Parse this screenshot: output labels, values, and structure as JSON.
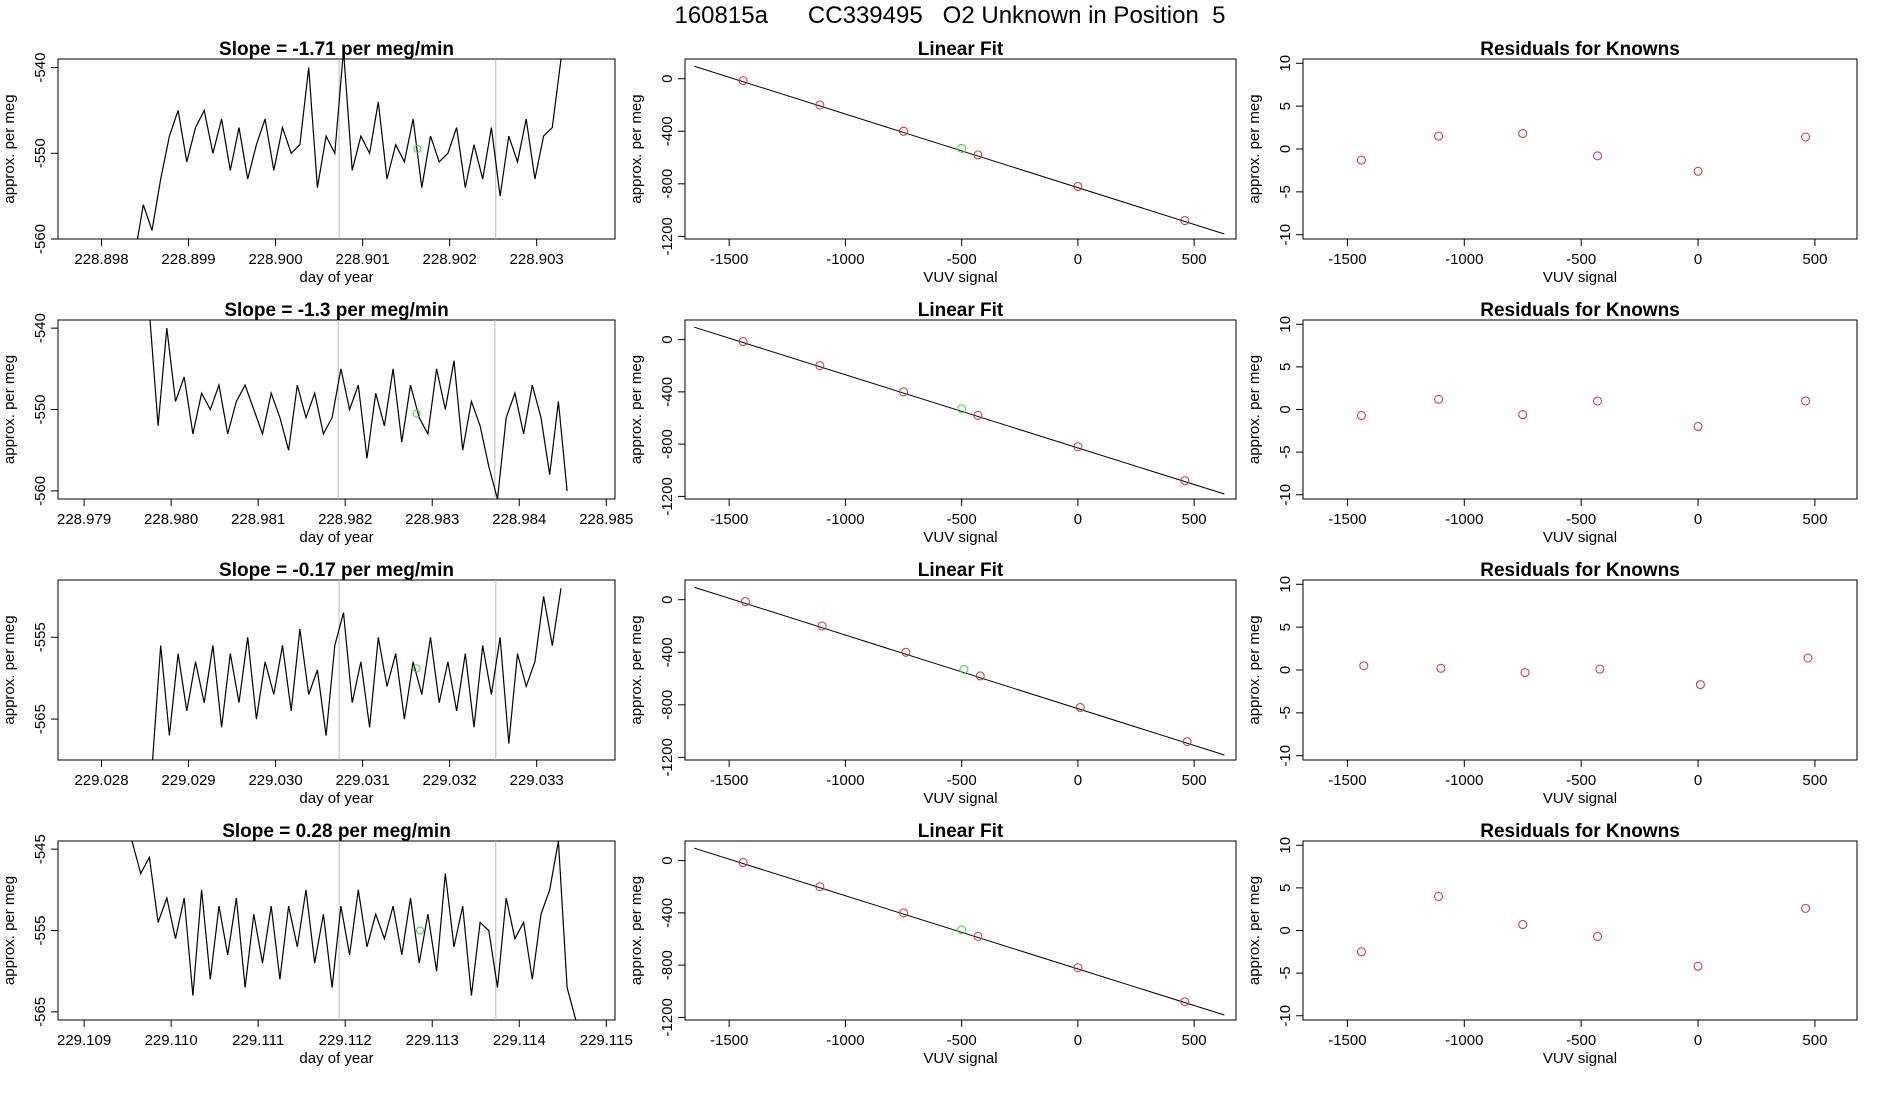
{
  "page": {
    "title": "160815a      CC339495   O2 Unknown in Position  5"
  },
  "colors": {
    "trace": "#000000",
    "known_point": "#cd3333",
    "unknown_point": "#33dd33",
    "window_line": "#bbbbbb",
    "axis": "#000000"
  },
  "chart_data": [
    {
      "type": "line",
      "title": "Slope =  -1.71  per meg/min",
      "xlabel": "day of year",
      "ylabel": "approx. per meg",
      "xlim": [
        228.8975,
        228.9039
      ],
      "ylim": [
        -560,
        -539
      ],
      "xticks": [
        228.898,
        228.899,
        228.9,
        228.901,
        228.902,
        228.903
      ],
      "xtick_labels": [
        "228.898",
        "228.899",
        "228.900",
        "228.901",
        "228.902",
        "228.903"
      ],
      "yticks": [
        -560,
        -550,
        -540
      ],
      "ytick_labels": [
        "-560",
        "-550",
        "-540"
      ],
      "window_lines": [
        228.90073,
        228.90253
      ],
      "trace": {
        "x": [
          228.89838,
          228.89848,
          228.89858,
          228.89868,
          228.89878,
          228.89888,
          228.89898,
          228.89908,
          228.89918,
          228.89928,
          228.89938,
          228.89948,
          228.89958,
          228.89968,
          228.89978,
          228.89988,
          228.89998,
          228.90008,
          228.90018,
          228.90028,
          228.90038,
          228.90048,
          228.90058,
          228.90068,
          228.90078,
          228.90088,
          228.90098,
          228.90108,
          228.90118,
          228.90128,
          228.90138,
          228.90148,
          228.90158,
          228.90168,
          228.90178,
          228.90188,
          228.90198,
          228.90208,
          228.90218,
          228.90228,
          228.90238,
          228.90248,
          228.90258,
          228.90268,
          228.90278,
          228.90288,
          228.90298,
          228.90308,
          228.90318,
          228.90328
        ],
        "y": [
          -562,
          -556,
          -559,
          -553,
          -548,
          -545,
          -551,
          -547,
          -545,
          -550,
          -546,
          -552,
          -547,
          -553,
          -549,
          -546,
          -552,
          -547,
          -550,
          -549,
          -540,
          -554,
          -548,
          -550,
          -538,
          -552,
          -548,
          -550,
          -544,
          -553,
          -549,
          -551,
          -546,
          -554,
          -548,
          -551,
          -550,
          -547,
          -554,
          -549,
          -553,
          -547,
          -555,
          -548,
          -551,
          -546,
          -553,
          -548,
          -547,
          -539
        ]
      },
      "unknown_point": {
        "x": 228.90163,
        "y": -549.5
      }
    },
    {
      "type": "scatter",
      "title": "Linear Fit",
      "xlabel": "VUV signal",
      "ylabel": "approx. per meg",
      "xlim": [
        -1690,
        680
      ],
      "ylim": [
        -1220,
        150
      ],
      "xticks": [
        -1500,
        -1000,
        -500,
        0,
        500
      ],
      "xtick_labels": [
        "-1500",
        "-1000",
        "-500",
        "0",
        "500"
      ],
      "yticks": [
        -1200,
        -800,
        -400,
        0
      ],
      "ytick_labels": [
        "-1200",
        "-800",
        "-400",
        "0"
      ],
      "fit_line": {
        "x": [
          -1650,
          630
        ],
        "y": [
          95,
          -1182
        ]
      },
      "knowns": {
        "x": [
          -1440,
          -1110,
          -750,
          -430,
          0,
          460
        ],
        "y": [
          -15,
          -200,
          -400,
          -580,
          -820,
          -1080
        ]
      },
      "unknown": {
        "x": -500,
        "y": -530
      }
    },
    {
      "type": "scatter",
      "title": "Residuals for Knowns",
      "xlabel": "VUV signal",
      "ylabel": "approx. per meg",
      "xlim": [
        -1690,
        680
      ],
      "ylim": [
        -10.5,
        10.5
      ],
      "xticks": [
        -1500,
        -1000,
        -500,
        0,
        500
      ],
      "xtick_labels": [
        "-1500",
        "-1000",
        "-500",
        "0",
        "500"
      ],
      "yticks": [
        -10,
        -5,
        0,
        5,
        10
      ],
      "ytick_labels": [
        "-10",
        "-5",
        "0",
        "5",
        "10"
      ],
      "points": {
        "x": [
          -1440,
          -1110,
          -750,
          -430,
          0,
          460
        ],
        "y": [
          -1.3,
          1.5,
          1.8,
          -0.8,
          -2.6,
          1.4
        ]
      }
    },
    {
      "type": "line",
      "title": "Slope =  -1.3  per meg/min",
      "xlabel": "day of year",
      "ylabel": "approx. per meg",
      "xlim": [
        228.9787,
        228.9851
      ],
      "ylim": [
        -561,
        -539
      ],
      "xticks": [
        228.979,
        228.98,
        228.981,
        228.982,
        228.983,
        228.984,
        228.985
      ],
      "xtick_labels": [
        "228.979",
        "228.980",
        "228.981",
        "228.982",
        "228.983",
        "228.984",
        "228.985"
      ],
      "yticks": [
        -560,
        -550,
        -540
      ],
      "ytick_labels": [
        "-560",
        "-550",
        "-540"
      ],
      "window_lines": [
        228.98192,
        228.98372
      ],
      "trace": {
        "x": [
          228.97975,
          228.97985,
          228.97995,
          228.98005,
          228.98015,
          228.98025,
          228.98035,
          228.98045,
          228.98055,
          228.98065,
          228.98075,
          228.98085,
          228.98095,
          228.98105,
          228.98115,
          228.98125,
          228.98135,
          228.98145,
          228.98155,
          228.98165,
          228.98175,
          228.98185,
          228.98195,
          228.98205,
          228.98215,
          228.98225,
          228.98235,
          228.98245,
          228.98255,
          228.98265,
          228.98275,
          228.98285,
          228.98295,
          228.98305,
          228.98315,
          228.98325,
          228.98335,
          228.98345,
          228.98355,
          228.98365,
          228.98375,
          228.98385,
          228.98395,
          228.98405,
          228.98415,
          228.98425,
          228.98435,
          228.98445,
          228.98455
        ],
        "y": [
          -538,
          -552,
          -540,
          -549,
          -546,
          -553,
          -548,
          -550,
          -547,
          -553,
          -549,
          -547,
          -550,
          -553,
          -548,
          -551,
          -555,
          -547,
          -551,
          -548,
          -553,
          -551,
          -545,
          -550,
          -547,
          -556,
          -548,
          -552,
          -545,
          -554,
          -547,
          -551,
          -553,
          -545,
          -550,
          -544,
          -555,
          -549,
          -552,
          -557,
          -561,
          -551,
          -548,
          -553,
          -547,
          -551,
          -558,
          -549,
          -560
        ]
      },
      "unknown_point": {
        "x": 228.98282,
        "y": -550.5
      }
    },
    {
      "type": "scatter",
      "title": "Linear Fit",
      "xlabel": "VUV signal",
      "ylabel": "approx. per meg",
      "xlim": [
        -1690,
        680
      ],
      "ylim": [
        -1220,
        150
      ],
      "xticks": [
        -1500,
        -1000,
        -500,
        0,
        500
      ],
      "xtick_labels": [
        "-1500",
        "-1000",
        "-500",
        "0",
        "500"
      ],
      "yticks": [
        -1200,
        -800,
        -400,
        0
      ],
      "ytick_labels": [
        "-1200",
        "-800",
        "-400",
        "0"
      ],
      "fit_line": {
        "x": [
          -1650,
          630
        ],
        "y": [
          95,
          -1182
        ]
      },
      "knowns": {
        "x": [
          -1440,
          -1110,
          -750,
          -430,
          0,
          460
        ],
        "y": [
          -15,
          -200,
          -400,
          -580,
          -820,
          -1080
        ]
      },
      "unknown": {
        "x": -500,
        "y": -530
      }
    },
    {
      "type": "scatter",
      "title": "Residuals for Knowns",
      "xlabel": "VUV signal",
      "ylabel": "approx. per meg",
      "xlim": [
        -1690,
        680
      ],
      "ylim": [
        -10.5,
        10.5
      ],
      "xticks": [
        -1500,
        -1000,
        -500,
        0,
        500
      ],
      "xtick_labels": [
        "-1500",
        "-1000",
        "-500",
        "0",
        "500"
      ],
      "yticks": [
        -10,
        -5,
        0,
        5,
        10
      ],
      "ytick_labels": [
        "-10",
        "-5",
        "0",
        "5",
        "10"
      ],
      "points": {
        "x": [
          -1440,
          -1110,
          -750,
          -430,
          0,
          460
        ],
        "y": [
          -0.7,
          1.2,
          -0.6,
          1.0,
          -2.0,
          1.0
        ]
      }
    },
    {
      "type": "line",
      "title": "Slope =  -0.17  per meg/min",
      "xlabel": "day of year",
      "ylabel": "approx. per meg",
      "xlim": [
        229.0275,
        229.0339
      ],
      "ylim": [
        -570,
        -548
      ],
      "xticks": [
        229.028,
        229.029,
        229.03,
        229.031,
        229.032,
        229.033
      ],
      "xtick_labels": [
        "229.028",
        "229.029",
        "229.030",
        "229.031",
        "229.032",
        "229.033"
      ],
      "yticks": [
        -565,
        -555
      ],
      "ytick_labels": [
        "-565",
        "-555"
      ],
      "window_lines": [
        229.03073,
        229.03253
      ],
      "trace": {
        "x": [
          229.02858,
          229.02868,
          229.02878,
          229.02888,
          229.02898,
          229.02908,
          229.02918,
          229.02928,
          229.02938,
          229.02948,
          229.02958,
          229.02968,
          229.02978,
          229.02988,
          229.02998,
          229.03008,
          229.03018,
          229.03028,
          229.03038,
          229.03048,
          229.03058,
          229.03068,
          229.03078,
          229.03088,
          229.03098,
          229.03108,
          229.03118,
          229.03128,
          229.03138,
          229.03148,
          229.03158,
          229.03168,
          229.03178,
          229.03188,
          229.03198,
          229.03208,
          229.03218,
          229.03228,
          229.03238,
          229.03248,
          229.03258,
          229.03268,
          229.03278,
          229.03288,
          229.03298,
          229.03308,
          229.03318,
          229.03328
        ],
        "y": [
          -571,
          -556,
          -567,
          -557,
          -564,
          -558,
          -563,
          -556,
          -566,
          -557,
          -563,
          -555,
          -565,
          -558,
          -562,
          -556,
          -564,
          -554,
          -562,
          -559,
          -567,
          -556,
          -552,
          -563,
          -558,
          -566,
          -555,
          -561,
          -557,
          -565,
          -558,
          -562,
          -555,
          -563,
          -558,
          -564,
          -557,
          -566,
          -556,
          -562,
          -555,
          -568,
          -557,
          -561,
          -558,
          -550,
          -556,
          -549
        ]
      },
      "unknown_point": {
        "x": 229.03162,
        "y": -558.8
      }
    },
    {
      "type": "scatter",
      "title": "Linear Fit",
      "xlabel": "VUV signal",
      "ylabel": "approx. per meg",
      "xlim": [
        -1690,
        680
      ],
      "ylim": [
        -1220,
        150
      ],
      "xticks": [
        -1500,
        -1000,
        -500,
        0,
        500
      ],
      "xtick_labels": [
        "-1500",
        "-1000",
        "-500",
        "0",
        "500"
      ],
      "yticks": [
        -1200,
        -800,
        -400,
        0
      ],
      "ytick_labels": [
        "-1200",
        "-800",
        "-400",
        "0"
      ],
      "fit_line": {
        "x": [
          -1650,
          630
        ],
        "y": [
          95,
          -1182
        ]
      },
      "knowns": {
        "x": [
          -1430,
          -1100,
          -740,
          -420,
          10,
          470
        ],
        "y": [
          -15,
          -200,
          -400,
          -580,
          -820,
          -1080
        ]
      },
      "unknown": {
        "x": -490,
        "y": -530
      }
    },
    {
      "type": "scatter",
      "title": "Residuals for Knowns",
      "xlabel": "VUV signal",
      "ylabel": "approx. per meg",
      "xlim": [
        -1690,
        680
      ],
      "ylim": [
        -10.5,
        10.5
      ],
      "xticks": [
        -1500,
        -1000,
        -500,
        0,
        500
      ],
      "xtick_labels": [
        "-1500",
        "-1000",
        "-500",
        "0",
        "500"
      ],
      "yticks": [
        -10,
        -5,
        0,
        5,
        10
      ],
      "ytick_labels": [
        "-10",
        "-5",
        "0",
        "5",
        "10"
      ],
      "points": {
        "x": [
          -1430,
          -1100,
          -740,
          -420,
          10,
          470
        ],
        "y": [
          0.5,
          0.2,
          -0.3,
          0.1,
          -1.7,
          1.4
        ]
      }
    },
    {
      "type": "line",
      "title": "Slope =  0.28  per meg/min",
      "xlabel": "day of year",
      "ylabel": "approx. per meg",
      "xlim": [
        229.1087,
        229.1151
      ],
      "ylim": [
        -566,
        -544
      ],
      "xticks": [
        229.109,
        229.11,
        229.111,
        229.112,
        229.113,
        229.114,
        229.115
      ],
      "xtick_labels": [
        "229.109",
        "229.110",
        "229.111",
        "229.112",
        "229.113",
        "229.114",
        "229.115"
      ],
      "yticks": [
        -565,
        -555,
        -545
      ],
      "ytick_labels": [
        "-565",
        "-555",
        "-545"
      ],
      "window_lines": [
        229.11193,
        229.11373
      ],
      "trace": {
        "x": [
          229.10955,
          229.10965,
          229.10975,
          229.10985,
          229.10995,
          229.11005,
          229.11015,
          229.11025,
          229.11035,
          229.11045,
          229.11055,
          229.11065,
          229.11075,
          229.11085,
          229.11095,
          229.11105,
          229.11115,
          229.11125,
          229.11135,
          229.11145,
          229.11155,
          229.11165,
          229.11175,
          229.11185,
          229.11195,
          229.11205,
          229.11215,
          229.11225,
          229.11235,
          229.11245,
          229.11255,
          229.11265,
          229.11275,
          229.11285,
          229.11295,
          229.11305,
          229.11315,
          229.11325,
          229.11335,
          229.11345,
          229.11355,
          229.11365,
          229.11375,
          229.11385,
          229.11395,
          229.11405,
          229.11415,
          229.11425,
          229.11435,
          229.11445,
          229.11455,
          229.11465
        ],
        "y": [
          -544,
          -548,
          -546,
          -554,
          -551,
          -556,
          -551,
          -563,
          -550,
          -561,
          -552,
          -558,
          -551,
          -562,
          -553,
          -559,
          -552,
          -561,
          -552,
          -557,
          -550,
          -559,
          -553,
          -562,
          -552,
          -558,
          -550,
          -557,
          -553,
          -556,
          -552,
          -558,
          -551,
          -559,
          -553,
          -560,
          -548,
          -557,
          -552,
          -563,
          -554,
          -555,
          -562,
          -551,
          -556,
          -554,
          -561,
          -553,
          -550,
          -544,
          -562,
          -566
        ]
      },
      "unknown_point": {
        "x": 229.11286,
        "y": -555
      }
    },
    {
      "type": "scatter",
      "title": "Linear Fit",
      "xlabel": "VUV signal",
      "ylabel": "approx. per meg",
      "xlim": [
        -1690,
        680
      ],
      "ylim": [
        -1220,
        150
      ],
      "xticks": [
        -1500,
        -1000,
        -500,
        0,
        500
      ],
      "xtick_labels": [
        "-1500",
        "-1000",
        "-500",
        "0",
        "500"
      ],
      "yticks": [
        -1200,
        -800,
        -400,
        0
      ],
      "ytick_labels": [
        "-1200",
        "-800",
        "-400",
        "0"
      ],
      "fit_line": {
        "x": [
          -1650,
          630
        ],
        "y": [
          95,
          -1182
        ]
      },
      "knowns": {
        "x": [
          -1440,
          -1110,
          -750,
          -430,
          0,
          460
        ],
        "y": [
          -15,
          -200,
          -400,
          -580,
          -820,
          -1080
        ]
      },
      "unknown": {
        "x": -500,
        "y": -530
      }
    },
    {
      "type": "scatter",
      "title": "Residuals for Knowns",
      "xlabel": "VUV signal",
      "ylabel": "approx. per meg",
      "xlim": [
        -1690,
        680
      ],
      "ylim": [
        -10.5,
        10.5
      ],
      "xticks": [
        -1500,
        -1000,
        -500,
        0,
        500
      ],
      "xtick_labels": [
        "-1500",
        "-1000",
        "-500",
        "0",
        "500"
      ],
      "yticks": [
        -10,
        -5,
        0,
        5,
        10
      ],
      "ytick_labels": [
        "-10",
        "-5",
        "0",
        "5",
        "10"
      ],
      "points": {
        "x": [
          -1440,
          -1110,
          -750,
          -430,
          0,
          460
        ],
        "y": [
          -2.5,
          4.0,
          0.7,
          -0.7,
          -4.2,
          2.6
        ]
      }
    }
  ]
}
